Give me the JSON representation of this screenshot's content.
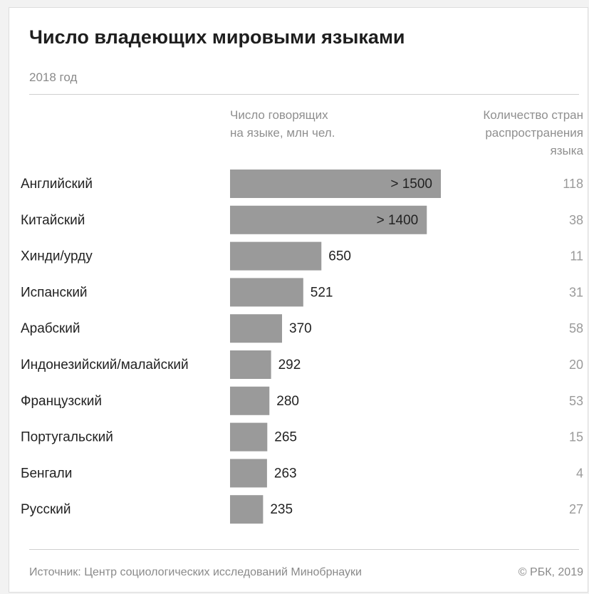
{
  "header": {
    "title": "Число владеющих мировыми языками",
    "subtitle": "2018 год"
  },
  "columns": {
    "speakers": [
      "Число говорящих",
      "на языке, млн чел."
    ],
    "countries": [
      "Количество стран",
      "распространения",
      "языка"
    ]
  },
  "footer": {
    "source": "Источник: Центр социологических исследований Минобрнауки",
    "copyright": "© РБК, 2019"
  },
  "colors": {
    "bar": "#9a9a9a",
    "label": "#222222",
    "value": "#222222",
    "country": "#9a9a9a"
  },
  "chart_data": {
    "type": "bar",
    "orientation": "horizontal",
    "categories": [
      "Английский",
      "Китайский",
      "Хинди/урду",
      "Испанский",
      "Арабский",
      "Индонезийский/малайский",
      "Французский",
      "Португальский",
      "Бенгали",
      "Русский"
    ],
    "values": [
      1500,
      1400,
      650,
      521,
      370,
      292,
      280,
      265,
      263,
      235
    ],
    "value_labels": [
      "> 1500",
      "> 1400",
      "650",
      "521",
      "370",
      "292",
      "280",
      "265",
      "263",
      "235"
    ],
    "countries": [
      "118",
      "38",
      "11",
      "31",
      "58",
      "20",
      "53",
      "15",
      "4",
      "27"
    ],
    "inside_label_threshold": 1000
  }
}
